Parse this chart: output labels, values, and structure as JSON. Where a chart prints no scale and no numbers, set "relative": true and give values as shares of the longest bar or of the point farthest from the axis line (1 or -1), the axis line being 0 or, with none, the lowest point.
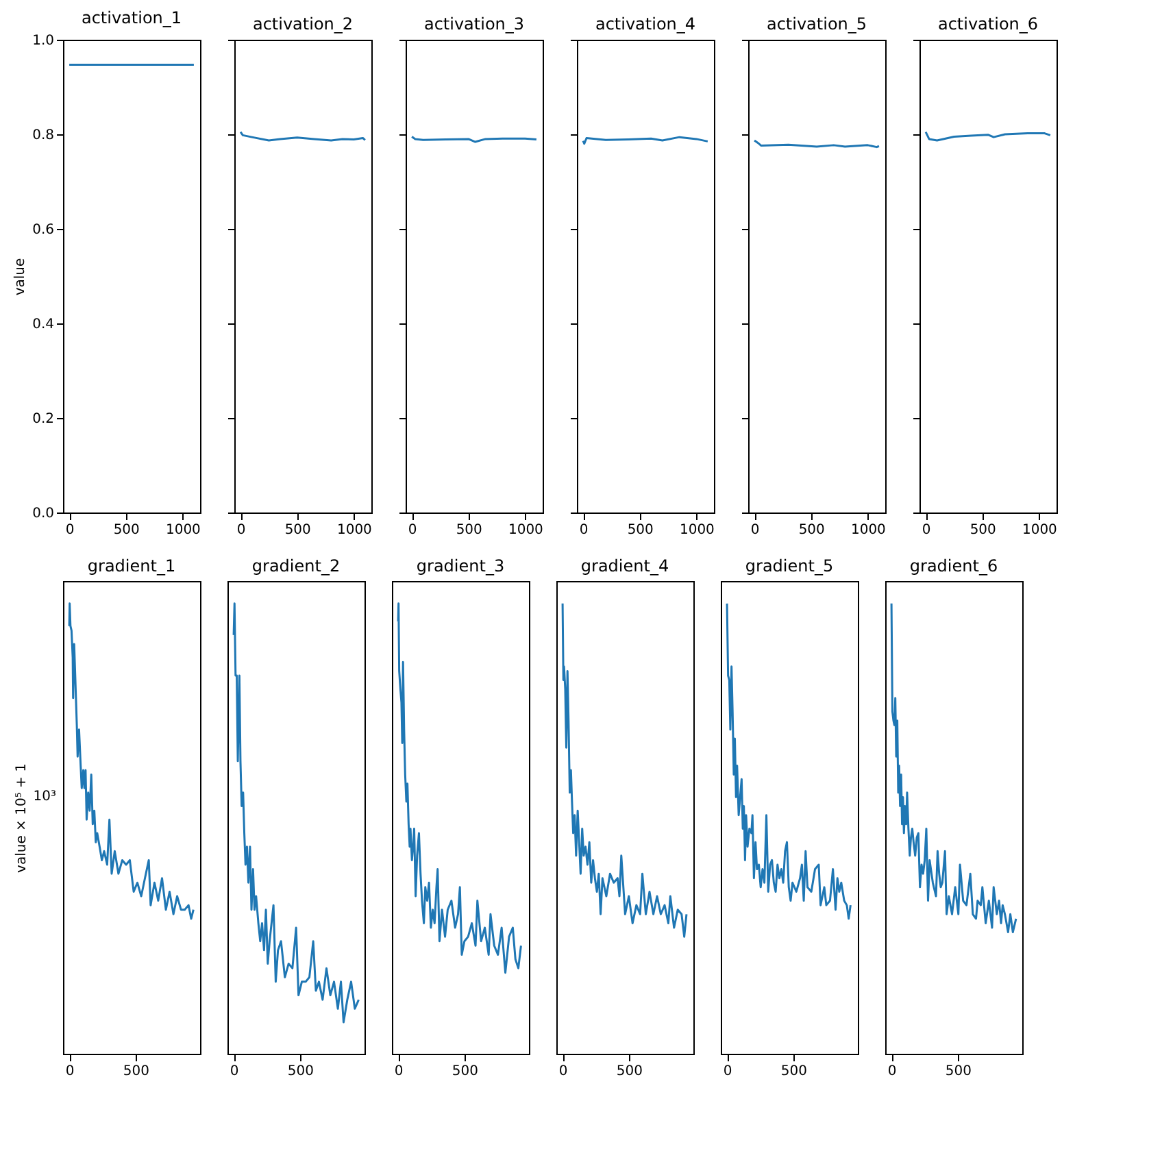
{
  "chart_data": [
    {
      "type": "line",
      "title": "activation_1",
      "ylabel": "value",
      "xlim": [
        -55,
        1155
      ],
      "xticks": [
        0,
        500,
        1000
      ],
      "ylim": [
        0,
        1
      ],
      "yticks": [
        {
          "value": 0,
          "label": "0.0"
        },
        0.2,
        0.4,
        0.6,
        0.8,
        {
          "value": 1,
          "label": "1.0"
        }
      ],
      "x": [
        0,
        200,
        400,
        600,
        800,
        1000,
        1100
      ],
      "series": [
        {
          "color": "#1f77b4",
          "values": [
            0.947,
            0.947,
            0.947,
            0.947,
            0.947,
            0.947,
            0.947
          ]
        }
      ]
    },
    {
      "type": "line",
      "title": "activation_2",
      "tick_labels": "x",
      "xlim": [
        -55,
        1155
      ],
      "xticks": [
        0,
        500,
        1000
      ],
      "ylim": [
        0,
        1
      ],
      "yticks": [
        {
          "value": 0,
          "label": null
        },
        {
          "value": 0.2,
          "label": null
        },
        {
          "value": 0.4,
          "label": null
        },
        {
          "value": 0.6,
          "label": null
        },
        {
          "value": 0.8,
          "label": null
        },
        {
          "value": 1,
          "label": null
        }
      ],
      "x": [
        0,
        20,
        100,
        250,
        350,
        500,
        650,
        800,
        900,
        1000,
        1080,
        1100
      ],
      "series": [
        {
          "color": "#1f77b4",
          "values": [
            0.805,
            0.798,
            0.794,
            0.787,
            0.79,
            0.793,
            0.79,
            0.787,
            0.79,
            0.789,
            0.792,
            0.788
          ]
        }
      ]
    },
    {
      "type": "line",
      "title": "activation_3",
      "tick_labels": "x",
      "xlim": [
        -55,
        1155
      ],
      "xticks": [
        0,
        500,
        1000
      ],
      "ylim": [
        0,
        1
      ],
      "yticks": [
        {
          "value": 0,
          "label": null
        },
        {
          "value": 0.2,
          "label": null
        },
        {
          "value": 0.4,
          "label": null
        },
        {
          "value": 0.6,
          "label": null
        },
        {
          "value": 0.8,
          "label": null
        },
        {
          "value": 1,
          "label": null
        }
      ],
      "x": [
        0,
        30,
        100,
        300,
        500,
        560,
        650,
        800,
        1000,
        1100
      ],
      "series": [
        {
          "color": "#1f77b4",
          "values": [
            0.795,
            0.79,
            0.788,
            0.789,
            0.79,
            0.784,
            0.79,
            0.791,
            0.791,
            0.789
          ]
        }
      ]
    },
    {
      "type": "line",
      "title": "activation_4",
      "tick_labels": "x",
      "xlim": [
        -55,
        1155
      ],
      "xticks": [
        0,
        500,
        1000
      ],
      "ylim": [
        0,
        1
      ],
      "yticks": [
        {
          "value": 0,
          "label": null
        },
        {
          "value": 0.2,
          "label": null
        },
        {
          "value": 0.4,
          "label": null
        },
        {
          "value": 0.6,
          "label": null
        },
        {
          "value": 0.8,
          "label": null
        },
        {
          "value": 1,
          "label": null
        }
      ],
      "x": [
        0,
        10,
        30,
        200,
        400,
        600,
        700,
        850,
        1000,
        1100
      ],
      "series": [
        {
          "color": "#1f77b4",
          "values": [
            0.786,
            0.78,
            0.792,
            0.788,
            0.789,
            0.791,
            0.787,
            0.794,
            0.79,
            0.785
          ]
        }
      ]
    },
    {
      "type": "line",
      "title": "activation_5",
      "tick_labels": "x",
      "xlim": [
        -55,
        1155
      ],
      "xticks": [
        0,
        500,
        1000
      ],
      "ylim": [
        0,
        1
      ],
      "yticks": [
        {
          "value": 0,
          "label": null
        },
        {
          "value": 0.2,
          "label": null
        },
        {
          "value": 0.4,
          "label": null
        },
        {
          "value": 0.6,
          "label": null
        },
        {
          "value": 0.8,
          "label": null
        },
        {
          "value": 1,
          "label": null
        }
      ],
      "x": [
        0,
        30,
        60,
        300,
        550,
        700,
        800,
        1000,
        1080,
        1100
      ],
      "series": [
        {
          "color": "#1f77b4",
          "values": [
            0.787,
            0.782,
            0.776,
            0.778,
            0.774,
            0.777,
            0.774,
            0.777,
            0.773,
            0.775
          ]
        }
      ]
    },
    {
      "type": "line",
      "title": "activation_6",
      "tick_labels": "x",
      "xlim": [
        -55,
        1155
      ],
      "xticks": [
        0,
        500,
        1000
      ],
      "ylim": [
        0,
        1
      ],
      "yticks": [
        {
          "value": 0,
          "label": null
        },
        {
          "value": 0.2,
          "label": null
        },
        {
          "value": 0.4,
          "label": null
        },
        {
          "value": 0.6,
          "label": null
        },
        {
          "value": 0.8,
          "label": null
        },
        {
          "value": 1,
          "label": null
        }
      ],
      "x": [
        0,
        30,
        100,
        250,
        400,
        550,
        600,
        700,
        900,
        1050,
        1100
      ],
      "series": [
        {
          "color": "#1f77b4",
          "values": [
            0.805,
            0.79,
            0.787,
            0.795,
            0.797,
            0.799,
            0.794,
            0.8,
            0.802,
            0.802,
            0.798
          ]
        }
      ]
    },
    {
      "type": "line",
      "title": "gradient_1",
      "ylabel": "value × 10⁵ + 1",
      "relative": true,
      "annotations": [
        "10³"
      ],
      "xlim": [
        -47,
        987
      ],
      "xticks": [
        0,
        500
      ],
      "x": [
        0,
        3,
        9,
        17,
        26,
        29,
        37,
        46,
        57,
        63,
        74,
        86,
        94,
        106,
        114,
        123,
        131,
        143,
        154,
        166,
        177,
        189,
        200,
        211,
        229,
        246,
        263,
        286,
        303,
        320,
        343,
        371,
        400,
        429,
        457,
        486,
        514,
        543,
        571,
        600,
        614,
        643,
        671,
        700,
        729,
        757,
        786,
        814,
        843,
        871,
        900,
        920,
        937
      ],
      "series": [
        {
          "color": "#1f77b4",
          "values": [
            0.95,
            1.0,
            0.95,
            0.94,
            0.88,
            0.79,
            0.91,
            0.83,
            0.73,
            0.66,
            0.72,
            0.64,
            0.59,
            0.63,
            0.59,
            0.63,
            0.52,
            0.58,
            0.54,
            0.62,
            0.51,
            0.54,
            0.47,
            0.49,
            0.46,
            0.43,
            0.45,
            0.42,
            0.52,
            0.4,
            0.45,
            0.4,
            0.43,
            0.42,
            0.43,
            0.36,
            0.38,
            0.35,
            0.39,
            0.43,
            0.33,
            0.38,
            0.34,
            0.39,
            0.32,
            0.36,
            0.31,
            0.35,
            0.32,
            0.32,
            0.33,
            0.3,
            0.32
          ]
        }
      ]
    },
    {
      "type": "line",
      "title": "gradient_2",
      "tick_labels": "x",
      "relative": true,
      "xlim": [
        -47,
        987
      ],
      "xticks": [
        0,
        500
      ],
      "x": [
        0,
        6,
        14,
        23,
        31,
        43,
        51,
        60,
        71,
        80,
        89,
        100,
        111,
        123,
        134,
        146,
        157,
        169,
        186,
        200,
        214,
        229,
        243,
        257,
        271,
        300,
        317,
        334,
        357,
        386,
        414,
        443,
        471,
        489,
        514,
        543,
        571,
        600,
        620,
        643,
        671,
        700,
        729,
        757,
        786,
        809,
        829,
        857,
        886,
        914,
        943
      ],
      "series": [
        {
          "color": "#1f77b4",
          "values": [
            0.93,
            1.0,
            0.84,
            0.84,
            0.65,
            0.84,
            0.65,
            0.55,
            0.58,
            0.49,
            0.42,
            0.46,
            0.38,
            0.46,
            0.32,
            0.41,
            0.32,
            0.35,
            0.29,
            0.25,
            0.29,
            0.23,
            0.32,
            0.2,
            0.25,
            0.33,
            0.16,
            0.23,
            0.25,
            0.17,
            0.2,
            0.19,
            0.28,
            0.13,
            0.16,
            0.16,
            0.17,
            0.25,
            0.14,
            0.16,
            0.12,
            0.19,
            0.13,
            0.16,
            0.1,
            0.16,
            0.07,
            0.12,
            0.16,
            0.1,
            0.12
          ]
        }
      ]
    },
    {
      "type": "line",
      "title": "gradient_3",
      "tick_labels": "x",
      "relative": true,
      "xlim": [
        -47,
        987
      ],
      "xticks": [
        0,
        500
      ],
      "x": [
        0,
        3,
        8,
        17,
        25,
        31,
        37,
        45,
        53,
        62,
        70,
        79,
        87,
        93,
        104,
        115,
        121,
        132,
        143,
        157,
        169,
        180,
        194,
        205,
        219,
        233,
        247,
        261,
        275,
        289,
        298,
        312,
        331,
        354,
        374,
        402,
        430,
        452,
        466,
        480,
        500,
        528,
        556,
        584,
        598,
        626,
        654,
        683,
        697,
        725,
        753,
        781,
        809,
        837,
        865,
        885,
        907,
        927
      ],
      "series": [
        {
          "color": "#1f77b4",
          "values": [
            0.96,
            1.0,
            0.85,
            0.81,
            0.78,
            0.69,
            0.87,
            0.72,
            0.62,
            0.56,
            0.6,
            0.51,
            0.46,
            0.5,
            0.43,
            0.47,
            0.5,
            0.35,
            0.44,
            0.49,
            0.4,
            0.34,
            0.29,
            0.37,
            0.34,
            0.38,
            0.28,
            0.32,
            0.29,
            0.37,
            0.41,
            0.25,
            0.32,
            0.26,
            0.32,
            0.34,
            0.28,
            0.31,
            0.37,
            0.22,
            0.25,
            0.26,
            0.29,
            0.24,
            0.34,
            0.25,
            0.28,
            0.22,
            0.31,
            0.24,
            0.22,
            0.28,
            0.18,
            0.26,
            0.28,
            0.21,
            0.19,
            0.24
          ]
        }
      ]
    },
    {
      "type": "line",
      "title": "gradient_4",
      "tick_labels": "x",
      "relative": true,
      "xlim": [
        -47,
        987
      ],
      "xticks": [
        0,
        500
      ],
      "x": [
        0,
        6,
        11,
        20,
        28,
        37,
        45,
        54,
        63,
        71,
        80,
        91,
        102,
        114,
        125,
        136,
        148,
        159,
        173,
        188,
        202,
        216,
        230,
        244,
        259,
        273,
        287,
        301,
        330,
        358,
        386,
        415,
        429,
        443,
        472,
        500,
        528,
        557,
        585,
        602,
        628,
        656,
        685,
        713,
        741,
        770,
        798,
        813,
        841,
        869,
        898,
        918,
        935
      ],
      "series": [
        {
          "color": "#1f77b4",
          "values": [
            1.0,
            0.83,
            0.86,
            0.81,
            0.68,
            0.85,
            0.74,
            0.58,
            0.63,
            0.56,
            0.49,
            0.53,
            0.44,
            0.54,
            0.47,
            0.4,
            0.5,
            0.44,
            0.46,
            0.42,
            0.47,
            0.38,
            0.43,
            0.39,
            0.36,
            0.4,
            0.31,
            0.39,
            0.35,
            0.4,
            0.38,
            0.39,
            0.35,
            0.44,
            0.31,
            0.35,
            0.29,
            0.33,
            0.31,
            0.4,
            0.31,
            0.36,
            0.31,
            0.35,
            0.31,
            0.33,
            0.29,
            0.35,
            0.28,
            0.32,
            0.31,
            0.26,
            0.31
          ]
        }
      ]
    },
    {
      "type": "line",
      "title": "gradient_5",
      "tick_labels": "x",
      "relative": true,
      "xlim": [
        -47,
        987
      ],
      "xticks": [
        0,
        500
      ],
      "x": [
        0,
        8,
        17,
        25,
        34,
        42,
        51,
        59,
        68,
        76,
        88,
        99,
        110,
        119,
        127,
        136,
        144,
        155,
        169,
        184,
        192,
        203,
        215,
        226,
        240,
        254,
        268,
        282,
        297,
        311,
        325,
        339,
        353,
        367,
        381,
        395,
        410,
        424,
        438,
        452,
        466,
        480,
        494,
        523,
        551,
        565,
        579,
        593,
        607,
        636,
        664,
        692,
        706,
        734,
        749,
        777,
        799,
        819,
        833,
        847,
        862,
        884,
        904,
        918,
        932
      ],
      "series": [
        {
          "color": "#1f77b4",
          "values": [
            1.0,
            0.84,
            0.83,
            0.72,
            0.86,
            0.76,
            0.62,
            0.7,
            0.57,
            0.64,
            0.53,
            0.57,
            0.61,
            0.5,
            0.55,
            0.43,
            0.53,
            0.46,
            0.5,
            0.49,
            0.53,
            0.39,
            0.47,
            0.41,
            0.42,
            0.37,
            0.41,
            0.38,
            0.53,
            0.36,
            0.42,
            0.43,
            0.38,
            0.36,
            0.42,
            0.39,
            0.41,
            0.38,
            0.45,
            0.47,
            0.37,
            0.34,
            0.38,
            0.36,
            0.39,
            0.42,
            0.34,
            0.45,
            0.37,
            0.36,
            0.41,
            0.42,
            0.33,
            0.37,
            0.33,
            0.34,
            0.41,
            0.32,
            0.39,
            0.36,
            0.38,
            0.34,
            0.33,
            0.3,
            0.33
          ]
        }
      ]
    },
    {
      "type": "line",
      "title": "gradient_6",
      "tick_labels": "x",
      "relative": true,
      "xlim": [
        -47,
        987
      ],
      "xticks": [
        0,
        500
      ],
      "x": [
        0,
        7,
        15,
        22,
        29,
        36,
        44,
        51,
        58,
        65,
        73,
        80,
        87,
        94,
        102,
        111,
        118,
        128,
        138,
        147,
        157,
        167,
        179,
        191,
        203,
        215,
        227,
        239,
        251,
        263,
        276,
        288,
        312,
        336,
        348,
        360,
        372,
        384,
        404,
        416,
        433,
        457,
        481,
        505,
        517,
        541,
        566,
        595,
        614,
        638,
        650,
        674,
        686,
        711,
        735,
        759,
        771,
        795,
        812,
        827,
        839,
        856,
        880,
        897,
        916,
        940
      ],
      "series": [
        {
          "color": "#1f77b4",
          "values": [
            1.0,
            0.76,
            0.74,
            0.73,
            0.79,
            0.66,
            0.74,
            0.58,
            0.64,
            0.55,
            0.62,
            0.51,
            0.57,
            0.49,
            0.55,
            0.51,
            0.58,
            0.5,
            0.44,
            0.48,
            0.5,
            0.47,
            0.44,
            0.48,
            0.49,
            0.37,
            0.42,
            0.4,
            0.43,
            0.5,
            0.34,
            0.43,
            0.38,
            0.35,
            0.45,
            0.4,
            0.37,
            0.38,
            0.45,
            0.31,
            0.35,
            0.31,
            0.37,
            0.31,
            0.42,
            0.34,
            0.33,
            0.4,
            0.31,
            0.3,
            0.34,
            0.33,
            0.37,
            0.29,
            0.34,
            0.28,
            0.37,
            0.31,
            0.34,
            0.29,
            0.33,
            0.31,
            0.27,
            0.31,
            0.27,
            0.3
          ]
        }
      ]
    }
  ]
}
